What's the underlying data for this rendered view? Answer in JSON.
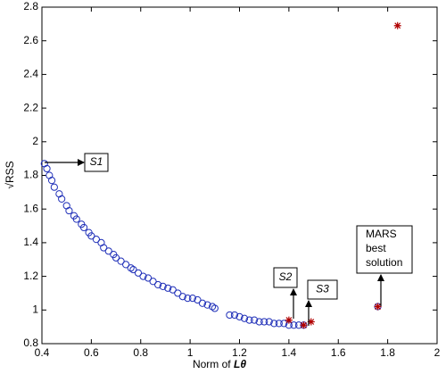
{
  "chart_data": {
    "type": "scatter",
    "xlabel": {
      "text": "Norm of",
      "symbol": "Lθ"
    },
    "ylabel": "√RSS",
    "xlim": [
      0.4,
      2
    ],
    "xticks": [
      0.4,
      0.6,
      0.8,
      1,
      1.2,
      1.4,
      1.6,
      1.8,
      2
    ],
    "ylim": [
      0.8,
      2.8
    ],
    "yticks": [
      0.8,
      1,
      1.2,
      1.4,
      1.6,
      1.8,
      2,
      2.2,
      2.4,
      2.6,
      2.8
    ],
    "series": [
      {
        "color": "#1f2fb8",
        "marker": "circle",
        "x": [
          0.41,
          0.42,
          0.43,
          0.44,
          0.45,
          0.47,
          0.48,
          0.5,
          0.51,
          0.53,
          0.54,
          0.56,
          0.57,
          0.59,
          0.6,
          0.62,
          0.64,
          0.65,
          0.67,
          0.69,
          0.7,
          0.72,
          0.74,
          0.76,
          0.77,
          0.79,
          0.81,
          0.83,
          0.85,
          0.87,
          0.89,
          0.91,
          0.93,
          0.95,
          0.97,
          0.99,
          1.01,
          1.03,
          1.05,
          1.07,
          1.09,
          1.1,
          1.16,
          1.18,
          1.2,
          1.22,
          1.24,
          1.26,
          1.28,
          1.3,
          1.32,
          1.34,
          1.36,
          1.38,
          1.4,
          1.42,
          1.44,
          1.46,
          1.76
        ],
        "values": [
          1.87,
          1.84,
          1.8,
          1.77,
          1.73,
          1.69,
          1.66,
          1.62,
          1.59,
          1.56,
          1.54,
          1.51,
          1.49,
          1.46,
          1.44,
          1.42,
          1.4,
          1.37,
          1.35,
          1.33,
          1.31,
          1.29,
          1.27,
          1.25,
          1.24,
          1.22,
          1.2,
          1.19,
          1.17,
          1.15,
          1.14,
          1.13,
          1.12,
          1.1,
          1.08,
          1.07,
          1.07,
          1.06,
          1.04,
          1.03,
          1.02,
          1.01,
          0.97,
          0.97,
          0.96,
          0.95,
          0.94,
          0.94,
          0.93,
          0.93,
          0.93,
          0.92,
          0.92,
          0.92,
          0.91,
          0.91,
          0.91,
          0.91,
          1.02
        ]
      },
      {
        "color": "#b00000",
        "marker": "star",
        "x": [
          1.4,
          1.46,
          1.49,
          1.76,
          1.84
        ],
        "values": [
          0.94,
          0.91,
          0.93,
          1.02,
          2.69
        ]
      }
    ],
    "annotations": [
      {
        "text": "S1"
      },
      {
        "text": "S2"
      },
      {
        "text": "S3"
      },
      {
        "lines": [
          "MARS",
          "best",
          "solution"
        ]
      }
    ]
  }
}
